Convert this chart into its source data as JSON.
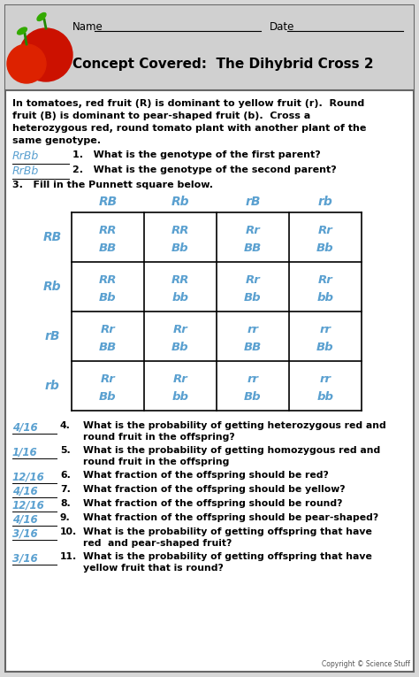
{
  "title": "Concept Covered:  The Dihybrid Cross 2",
  "bg_color": "#d8d8d8",
  "header_bg": "#d8d8d8",
  "body_bg": "#ffffff",
  "border_color": "#555555",
  "handwriting_color": "#5aA0d0",
  "problem_text_lines": [
    "In tomatoes, red fruit (R) is dominant to yellow fruit (r).  Round",
    "fruit (B) is dominant to pear-shaped fruit (b).  Cross a",
    "heterozygous red, round tomato plant with another plant of the",
    "same genotype."
  ],
  "q1_answer": "RrBb",
  "q2_answer": "RrBb",
  "q1_text": "1.   What is the genotype of the first parent?",
  "q2_text": "2.   What is the genotype of the second parent?",
  "q3_text": "3.   Fill in the Punnett square below.",
  "col_headers": [
    "RB",
    "Rb",
    "rB",
    "rb"
  ],
  "row_headers": [
    "RB",
    "Rb",
    "rB",
    "rb"
  ],
  "punnett_cells": [
    [
      "RR\nBB",
      "RR\nBb",
      "Rr\nBB",
      "Rr\nBb"
    ],
    [
      "RR\nBb",
      "RR\nbb",
      "Rr\nBb",
      "Rr\nbb"
    ],
    [
      "Rr\nBB",
      "Rr\nBb",
      "rr\nBB",
      "rr\nBb"
    ],
    [
      "Rr\nBb",
      "Rr\nbb",
      "rr\nBb",
      "rr\nbb"
    ]
  ],
  "questions": [
    {
      "num": "4.",
      "answer": "4/16",
      "text": "What is the probability of getting heterozygous red and",
      "text2": "round fruit in the offspring?"
    },
    {
      "num": "5.",
      "answer": "1/16",
      "text": "What is the probability of getting homozygous red and",
      "text2": "round fruit in the offspring"
    },
    {
      "num": "6.",
      "answer": "12/16",
      "text": "What fraction of the offspring should be red?",
      "text2": ""
    },
    {
      "num": "7.",
      "answer": "4/16",
      "text": "What fraction of the offspring should be yellow?",
      "text2": ""
    },
    {
      "num": "8.",
      "answer": "12/16",
      "text": "What fraction of the offspring should be round?",
      "text2": ""
    },
    {
      "num": "9.",
      "answer": "4/16",
      "text": "What fraction of the offspring should be pear-shaped?",
      "text2": ""
    },
    {
      "num": "10.",
      "answer": "3/16",
      "text": "What is the probability of getting offspring that have",
      "text2": "red  and pear-shaped fruit?"
    },
    {
      "num": "11.",
      "answer": "3/16",
      "text": "What is the probability of getting offspring that have",
      "text2": "yellow fruit that is round?"
    }
  ],
  "copyright": "Copyright © Science Stuff"
}
